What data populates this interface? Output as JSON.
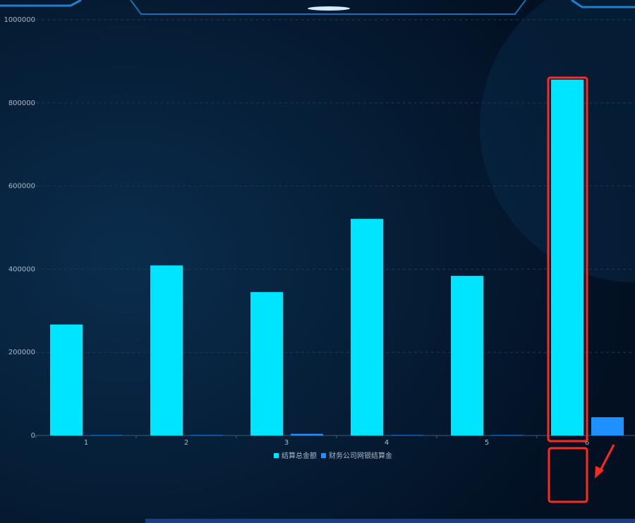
{
  "chart_data": {
    "type": "bar",
    "categories": [
      "1",
      "2",
      "3",
      "4",
      "5",
      "6"
    ],
    "series": [
      {
        "name": "结算总金额",
        "color": "#00e5ff",
        "values": [
          267000,
          409000,
          345000,
          521000,
          384000,
          856000
        ]
      },
      {
        "name": "财务公司网银结算金",
        "color": "#1e90ff",
        "values": [
          1000,
          1000,
          4000,
          1000,
          1000,
          44000
        ]
      }
    ],
    "ylim": [
      0,
      1000000
    ],
    "yticks": [
      0,
      200000,
      400000,
      600000,
      800000,
      1000000
    ],
    "grid": true
  }
}
